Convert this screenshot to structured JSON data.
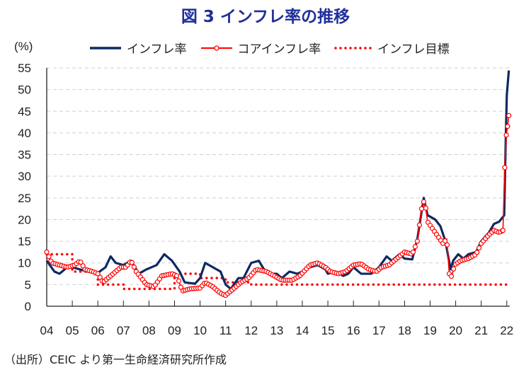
{
  "title": "図 3  インフレ率の推移",
  "source": "（出所）CEIC より第一生命経済研究所作成",
  "colors": {
    "headline": "#0d2a63",
    "core": "#ff0000",
    "target": "#ff0000",
    "title": "#1f2f9a"
  },
  "chart_data": {
    "type": "line",
    "title": "図 3  インフレ率の推移",
    "ylabel": "(%)",
    "xlabel": "",
    "ylim": [
      0,
      55
    ],
    "yticks": [
      "0",
      "5",
      "10",
      "15",
      "20",
      "25",
      "30",
      "35",
      "40",
      "45",
      "50",
      "55"
    ],
    "xlim": [
      2004,
      2022.1
    ],
    "xticks": [
      "04",
      "05",
      "06",
      "07",
      "08",
      "09",
      "10",
      "11",
      "12",
      "13",
      "14",
      "15",
      "16",
      "17",
      "18",
      "19",
      "20",
      "21",
      "22"
    ],
    "grid": true,
    "legend_position": "top",
    "series": [
      {
        "name": "インフレ率",
        "style": "solid",
        "x": [
          2004.0,
          2004.3,
          2004.5,
          2004.8,
          2005.0,
          2005.3,
          2005.6,
          2006.0,
          2006.3,
          2006.5,
          2006.7,
          2007.0,
          2007.3,
          2007.6,
          2007.9,
          2008.3,
          2008.6,
          2008.9,
          2009.2,
          2009.4,
          2009.8,
          2010.0,
          2010.2,
          2010.5,
          2010.8,
          2011.0,
          2011.2,
          2011.5,
          2011.7,
          2012.0,
          2012.3,
          2012.5,
          2012.8,
          2013.0,
          2013.2,
          2013.5,
          2013.8,
          2014.0,
          2014.3,
          2014.6,
          2014.9,
          2015.0,
          2015.3,
          2015.6,
          2015.8,
          2016.0,
          2016.3,
          2016.7,
          2016.9,
          2017.0,
          2017.3,
          2017.5,
          2017.8,
          2018.0,
          2018.3,
          2018.5,
          2018.75,
          2018.9,
          2019.2,
          2019.4,
          2019.6,
          2019.8,
          2019.9,
          2020.1,
          2020.3,
          2020.5,
          2020.8,
          2021.0,
          2021.3,
          2021.5,
          2021.7,
          2021.9,
          2021.95,
          2022.0,
          2022.08
        ],
        "values": [
          10.5,
          8.0,
          7.5,
          9.0,
          9.0,
          8.5,
          8.0,
          7.7,
          9.0,
          11.5,
          10.0,
          9.5,
          10.5,
          7.5,
          8.5,
          9.5,
          12.0,
          10.5,
          8.0,
          5.5,
          5.2,
          6.5,
          10.0,
          9.0,
          8.0,
          5.0,
          4.0,
          6.5,
          6.5,
          10.0,
          10.5,
          8.5,
          7.5,
          7.5,
          6.5,
          8.0,
          7.5,
          8.0,
          9.0,
          9.5,
          8.5,
          7.5,
          8.0,
          7.0,
          7.5,
          9.0,
          7.5,
          7.5,
          8.5,
          9.0,
          11.5,
          10.5,
          12.0,
          11.0,
          10.8,
          15.5,
          25.0,
          21.0,
          20.0,
          18.5,
          15.0,
          8.5,
          10.5,
          12.0,
          11.0,
          12.0,
          12.5,
          15.0,
          17.0,
          19.0,
          19.5,
          21.0,
          36.0,
          48.7,
          54.4
        ]
      },
      {
        "name": "コアインフレ率",
        "style": "line-with-circle-markers",
        "x": [
          2004.0,
          2004.2,
          2004.5,
          2004.8,
          2005.1,
          2005.3,
          2005.5,
          2005.8,
          2006.0,
          2006.2,
          2006.6,
          2006.9,
          2007.1,
          2007.3,
          2007.5,
          2007.9,
          2008.2,
          2008.5,
          2008.9,
          2009.1,
          2009.3,
          2009.6,
          2010.0,
          2010.2,
          2010.5,
          2010.8,
          2011.0,
          2011.3,
          2011.6,
          2011.9,
          2012.2,
          2012.6,
          2012.9,
          2013.2,
          2013.6,
          2013.9,
          2014.3,
          2014.6,
          2014.9,
          2015.1,
          2015.4,
          2015.7,
          2016.0,
          2016.3,
          2016.6,
          2016.9,
          2017.1,
          2017.4,
          2017.8,
          2018.0,
          2018.3,
          2018.5,
          2018.7,
          2018.8,
          2018.9,
          2019.2,
          2019.5,
          2019.65,
          2019.75,
          2019.85,
          2019.95,
          2020.2,
          2020.5,
          2020.8,
          2021.0,
          2021.3,
          2021.5,
          2021.7,
          2021.85,
          2021.92,
          2021.98,
          2022.03,
          2022.08
        ],
        "values": [
          12.5,
          10.0,
          9.5,
          9.0,
          9.5,
          10.5,
          8.5,
          8.0,
          7.5,
          5.5,
          7.5,
          9.0,
          9.0,
          10.5,
          8.0,
          5.0,
          4.5,
          7.0,
          7.5,
          7.0,
          3.5,
          4.0,
          4.2,
          5.5,
          4.5,
          3.0,
          2.5,
          4.0,
          5.5,
          6.5,
          8.5,
          8.0,
          7.0,
          6.0,
          6.0,
          7.0,
          9.5,
          10.0,
          9.0,
          8.0,
          7.5,
          8.0,
          9.5,
          9.8,
          8.5,
          8.0,
          9.0,
          9.5,
          11.5,
          12.5,
          12.0,
          15.0,
          24.0,
          24.2,
          19.5,
          17.0,
          14.5,
          15.5,
          7.5,
          6.8,
          9.5,
          10.5,
          11.0,
          12.0,
          14.5,
          16.5,
          17.5,
          17.0,
          17.5,
          32.0,
          39.5,
          41.5,
          44.0
        ]
      },
      {
        "name": "インフレ目標",
        "style": "dotted-step",
        "x": [
          2004,
          2005,
          2006,
          2007,
          2008,
          2009,
          2010,
          2011,
          2012,
          2013,
          2014,
          2015,
          2016,
          2017,
          2018,
          2019,
          2020,
          2021,
          2022
        ],
        "values": [
          12,
          8,
          5,
          4,
          4,
          7.5,
          6.5,
          5.5,
          5,
          5,
          5,
          5,
          5,
          5,
          5,
          5,
          5,
          5,
          5
        ]
      }
    ]
  }
}
